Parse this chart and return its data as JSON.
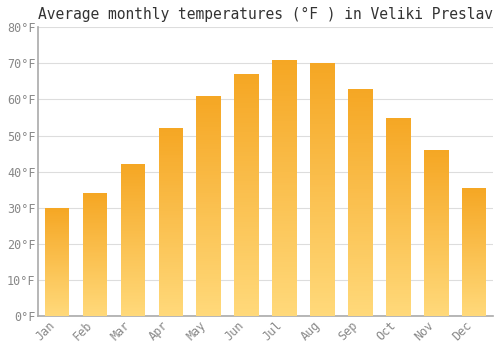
{
  "title": "Average monthly temperatures (°F ) in Veliki Preslav",
  "months": [
    "Jan",
    "Feb",
    "Mar",
    "Apr",
    "May",
    "Jun",
    "Jul",
    "Aug",
    "Sep",
    "Oct",
    "Nov",
    "Dec"
  ],
  "values": [
    30,
    34,
    42,
    52,
    61,
    67,
    71,
    70,
    63,
    55,
    46,
    35.5
  ],
  "bar_color": "#F5A623",
  "bar_color_light": "#FFD97A",
  "ylim": [
    0,
    80
  ],
  "ytick_step": 10,
  "background_color": "#ffffff",
  "plot_bg_color": "#ffffff",
  "grid_color": "#dddddd",
  "title_fontsize": 10.5,
  "tick_fontsize": 8.5,
  "axis_color": "#888888",
  "spine_color": "#aaaaaa"
}
